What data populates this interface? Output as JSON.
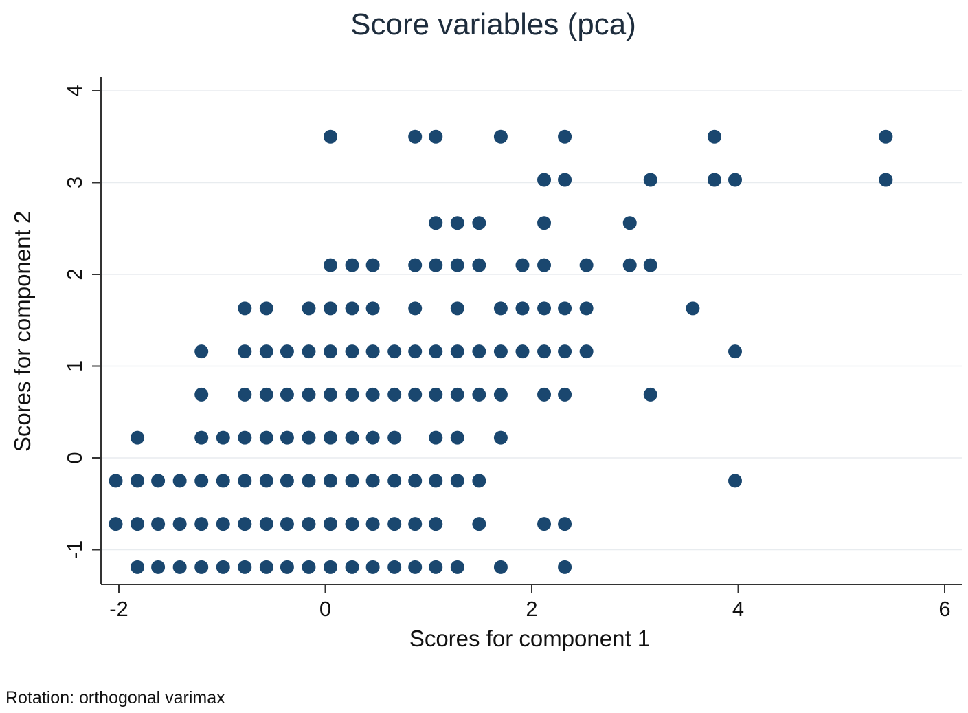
{
  "chart_data": {
    "type": "scatter",
    "title": "Score variables (pca)",
    "xlabel": "Scores for component 1",
    "ylabel": "Scores for component 2",
    "note": "Rotation: orthogonal varimax",
    "xlim": [
      -2.1,
      6.05
    ],
    "ylim": [
      -1.4,
      4.15
    ],
    "xticks": [
      -2,
      0,
      2,
      4,
      6
    ],
    "yticks": [
      -1,
      0,
      1,
      2,
      3,
      4
    ],
    "xtick_labels": [
      "-2",
      "0",
      "2",
      "4",
      "6"
    ],
    "ytick_labels": [
      "-1",
      "0",
      "1",
      "2",
      "3",
      "4"
    ],
    "grid": "horizontal",
    "marker_color": "#1a476f",
    "series": [
      {
        "points": [
          [
            0.05,
            3.5
          ],
          [
            0.87,
            3.5
          ],
          [
            1.07,
            3.5
          ],
          [
            1.7,
            3.5
          ],
          [
            2.32,
            3.5
          ],
          [
            3.77,
            3.5
          ],
          [
            5.43,
            3.5
          ],
          [
            2.12,
            3.03
          ],
          [
            2.32,
            3.03
          ],
          [
            3.15,
            3.03
          ],
          [
            3.77,
            3.03
          ],
          [
            3.97,
            3.03
          ],
          [
            5.43,
            3.03
          ],
          [
            1.07,
            2.56
          ],
          [
            1.28,
            2.56
          ],
          [
            1.49,
            2.56
          ],
          [
            2.12,
            2.56
          ],
          [
            2.95,
            2.56
          ],
          [
            0.05,
            2.1
          ],
          [
            0.26,
            2.1
          ],
          [
            0.46,
            2.1
          ],
          [
            0.87,
            2.1
          ],
          [
            1.07,
            2.1
          ],
          [
            1.28,
            2.1
          ],
          [
            1.49,
            2.1
          ],
          [
            1.91,
            2.1
          ],
          [
            2.12,
            2.1
          ],
          [
            2.53,
            2.1
          ],
          [
            2.95,
            2.1
          ],
          [
            3.15,
            2.1
          ],
          [
            -0.78,
            1.63
          ],
          [
            -0.57,
            1.63
          ],
          [
            -0.16,
            1.63
          ],
          [
            0.05,
            1.63
          ],
          [
            0.26,
            1.63
          ],
          [
            0.46,
            1.63
          ],
          [
            0.87,
            1.63
          ],
          [
            1.28,
            1.63
          ],
          [
            1.7,
            1.63
          ],
          [
            1.91,
            1.63
          ],
          [
            2.12,
            1.63
          ],
          [
            2.32,
            1.63
          ],
          [
            2.53,
            1.63
          ],
          [
            3.56,
            1.63
          ],
          [
            -1.2,
            1.16
          ],
          [
            -0.78,
            1.16
          ],
          [
            -0.57,
            1.16
          ],
          [
            -0.37,
            1.16
          ],
          [
            -0.16,
            1.16
          ],
          [
            0.05,
            1.16
          ],
          [
            0.26,
            1.16
          ],
          [
            0.46,
            1.16
          ],
          [
            0.67,
            1.16
          ],
          [
            0.87,
            1.16
          ],
          [
            1.07,
            1.16
          ],
          [
            1.28,
            1.16
          ],
          [
            1.49,
            1.16
          ],
          [
            1.7,
            1.16
          ],
          [
            1.91,
            1.16
          ],
          [
            2.12,
            1.16
          ],
          [
            2.32,
            1.16
          ],
          [
            2.53,
            1.16
          ],
          [
            3.97,
            1.16
          ],
          [
            -1.2,
            0.69
          ],
          [
            -0.78,
            0.69
          ],
          [
            -0.57,
            0.69
          ],
          [
            -0.37,
            0.69
          ],
          [
            -0.16,
            0.69
          ],
          [
            0.05,
            0.69
          ],
          [
            0.26,
            0.69
          ],
          [
            0.46,
            0.69
          ],
          [
            0.67,
            0.69
          ],
          [
            0.87,
            0.69
          ],
          [
            1.07,
            0.69
          ],
          [
            1.28,
            0.69
          ],
          [
            1.49,
            0.69
          ],
          [
            1.7,
            0.69
          ],
          [
            2.12,
            0.69
          ],
          [
            2.32,
            0.69
          ],
          [
            3.15,
            0.69
          ],
          [
            -1.82,
            0.22
          ],
          [
            -1.2,
            0.22
          ],
          [
            -0.99,
            0.22
          ],
          [
            -0.78,
            0.22
          ],
          [
            -0.57,
            0.22
          ],
          [
            -0.37,
            0.22
          ],
          [
            -0.16,
            0.22
          ],
          [
            0.05,
            0.22
          ],
          [
            0.26,
            0.22
          ],
          [
            0.46,
            0.22
          ],
          [
            0.67,
            0.22
          ],
          [
            1.07,
            0.22
          ],
          [
            1.28,
            0.22
          ],
          [
            1.7,
            0.22
          ],
          [
            -2.03,
            -0.25
          ],
          [
            -1.82,
            -0.25
          ],
          [
            -1.62,
            -0.25
          ],
          [
            -1.41,
            -0.25
          ],
          [
            -1.2,
            -0.25
          ],
          [
            -0.99,
            -0.25
          ],
          [
            -0.78,
            -0.25
          ],
          [
            -0.57,
            -0.25
          ],
          [
            -0.37,
            -0.25
          ],
          [
            -0.16,
            -0.25
          ],
          [
            0.05,
            -0.25
          ],
          [
            0.26,
            -0.25
          ],
          [
            0.46,
            -0.25
          ],
          [
            0.67,
            -0.25
          ],
          [
            0.87,
            -0.25
          ],
          [
            1.07,
            -0.25
          ],
          [
            1.28,
            -0.25
          ],
          [
            1.49,
            -0.25
          ],
          [
            3.97,
            -0.25
          ],
          [
            -2.03,
            -0.72
          ],
          [
            -1.82,
            -0.72
          ],
          [
            -1.62,
            -0.72
          ],
          [
            -1.41,
            -0.72
          ],
          [
            -1.2,
            -0.72
          ],
          [
            -0.99,
            -0.72
          ],
          [
            -0.78,
            -0.72
          ],
          [
            -0.57,
            -0.72
          ],
          [
            -0.37,
            -0.72
          ],
          [
            -0.16,
            -0.72
          ],
          [
            0.05,
            -0.72
          ],
          [
            0.26,
            -0.72
          ],
          [
            0.46,
            -0.72
          ],
          [
            0.67,
            -0.72
          ],
          [
            0.87,
            -0.72
          ],
          [
            1.07,
            -0.72
          ],
          [
            1.49,
            -0.72
          ],
          [
            2.12,
            -0.72
          ],
          [
            2.32,
            -0.72
          ],
          [
            -1.82,
            -1.19
          ],
          [
            -1.62,
            -1.19
          ],
          [
            -1.41,
            -1.19
          ],
          [
            -1.2,
            -1.19
          ],
          [
            -0.99,
            -1.19
          ],
          [
            -0.78,
            -1.19
          ],
          [
            -0.57,
            -1.19
          ],
          [
            -0.37,
            -1.19
          ],
          [
            -0.16,
            -1.19
          ],
          [
            0.05,
            -1.19
          ],
          [
            0.26,
            -1.19
          ],
          [
            0.46,
            -1.19
          ],
          [
            0.67,
            -1.19
          ],
          [
            0.87,
            -1.19
          ],
          [
            1.07,
            -1.19
          ],
          [
            1.28,
            -1.19
          ],
          [
            1.7,
            -1.19
          ],
          [
            2.32,
            -1.19
          ]
        ]
      }
    ]
  }
}
